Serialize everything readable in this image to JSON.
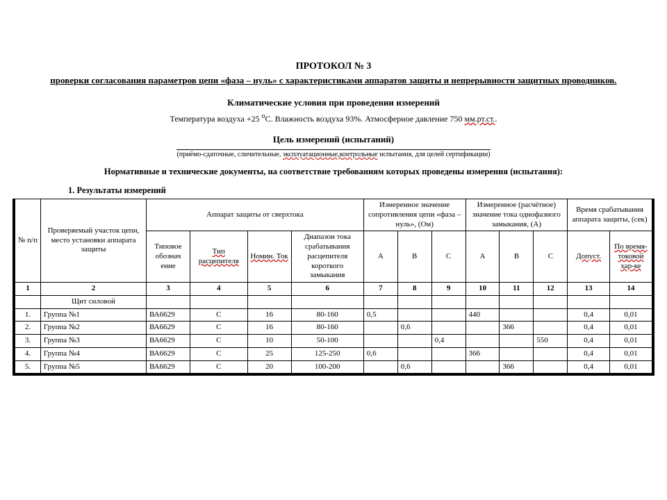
{
  "header": {
    "title": "ПРОТОКОЛ  № 3",
    "subtitle": "проверки согласования параметров цепи «фаза – нуль» с характеристиками аппаратов защиты и непрерывности защитных проводников."
  },
  "climate": {
    "heading": "Климатические условия при проведении измерений",
    "pre": "Температура воздуха  +25 ",
    "deg": "o",
    "mid": "С.  Влажность воздуха 93%.   Атмосферное давление  750 ",
    "unit": "мм.рт.ст."
  },
  "purpose": {
    "heading": "Цель измерений (испытаний)",
    "note_pre": "(приёмо-сдаточные, сличительные, ",
    "note_mid": "эксплуатационные,контрольные",
    "note_post": " испытания, для целей сертификации)"
  },
  "norms_heading": "Нормативные и технические документы, на соответствие требованиям которых проведены измерения (испытания):",
  "results_label": "1.   Результаты измерений",
  "table": {
    "head": {
      "c1": "№ п/п",
      "c2": "Проверяемый участок цепи, место установки аппарата защиты",
      "c_app": "Аппарат защиты от сверхтока",
      "c_meas_r": "Измеренное значение сопротивления цепи «фаза – нуль», (Ом)",
      "c_meas_i": "Измеренное (расчётное) значение тока однофазного замыкания, (А)",
      "c_time": "Время срабатывания аппарата защиты, (сек)",
      "c3": "Типовое обознач\nение",
      "c4": "Тип расцепителя",
      "c5": "Номин. Ток",
      "c6": "Диапазон тока срабатывания расцепителя короткого замыкания",
      "A": "A",
      "B": "B",
      "C": "C",
      "c13": "Допуст.",
      "c14": "По время-токовой хар-ке"
    },
    "colnums": [
      "1",
      "2",
      "3",
      "4",
      "5",
      "6",
      "7",
      "8",
      "9",
      "10",
      "11",
      "12",
      "13",
      "14"
    ],
    "section": "Щит силовой",
    "rows": [
      {
        "n": "1.",
        "name": "Группа №1",
        "dev": "ВА6629",
        "type": "С",
        "inom": "16",
        "range": "80-160",
        "rA": "0,5",
        "rB": "",
        "rC": "",
        "iA": "440",
        "iB": "",
        "iC": "",
        "t1": "0,4",
        "t2": "0,01"
      },
      {
        "n": "2.",
        "name": "Группа №2",
        "dev": "ВА6629",
        "type": "С",
        "inom": "16",
        "range": "80-160",
        "rA": "",
        "rB": "0,6",
        "rC": "",
        "iA": "",
        "iB": "366",
        "iC": "",
        "t1": "0,4",
        "t2": "0,01"
      },
      {
        "n": "3.",
        "name": "Группа №3",
        "dev": "ВА6629",
        "type": "С",
        "inom": "10",
        "range": "50-100",
        "rA": "",
        "rB": "",
        "rC": "0,4",
        "iA": "",
        "iB": "",
        "iC": "550",
        "t1": "0,4",
        "t2": "0,01"
      },
      {
        "n": "4.",
        "name": "Группа №4",
        "dev": "ВА6629",
        "type": "С",
        "inom": "25",
        "range": "125-250",
        "rA": "0,6",
        "rB": "",
        "rC": "",
        "iA": "366",
        "iB": "",
        "iC": "",
        "t1": "0,4",
        "t2": "0,01"
      },
      {
        "n": "5.",
        "name": "Группа №5",
        "dev": "ВА6629",
        "type": "С",
        "inom": "20",
        "range": "100-200",
        "rA": "",
        "rB": "0,6",
        "rC": "",
        "iA": "",
        "iB": "366",
        "iC": "",
        "t1": "0,4",
        "t2": "0,01"
      }
    ]
  }
}
